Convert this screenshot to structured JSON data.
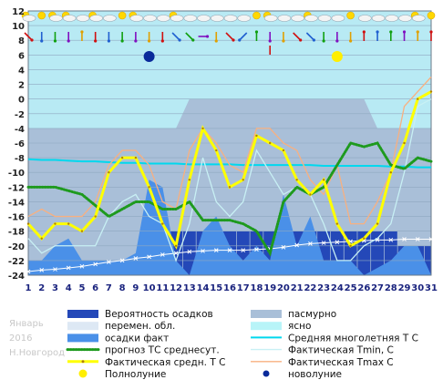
{
  "chart_data": {
    "type": "line",
    "x": [
      1,
      2,
      3,
      4,
      5,
      6,
      7,
      8,
      9,
      10,
      11,
      12,
      13,
      14,
      15,
      16,
      17,
      18,
      19,
      20,
      21,
      22,
      23,
      24,
      25,
      26,
      27,
      28,
      29,
      30,
      31
    ],
    "xlim": [
      1,
      31
    ],
    "ylim": [
      -24,
      12
    ],
    "y_ticks": [
      12,
      10,
      8,
      6,
      4,
      2,
      0,
      -2,
      -4,
      -6,
      -8,
      -10,
      -12,
      -14,
      -16,
      -18,
      -20,
      -22,
      -24
    ],
    "grid": true,
    "side_text": {
      "month": "Январь",
      "year": "2016",
      "city": "Н.Новгород"
    },
    "series": [
      {
        "name": "Вероятность осадков",
        "kind": "area",
        "color": "#2448b8",
        "values": [
          -22,
          -22,
          -22,
          -22,
          -22,
          -22,
          -22,
          -22,
          -22,
          -22,
          -22,
          -18,
          -18,
          -18,
          -18,
          -18,
          -18,
          -18,
          -18,
          -18,
          -18,
          -18,
          -18,
          -18,
          -18,
          -18,
          -18,
          -18,
          -20,
          -20,
          -20
        ]
      },
      {
        "name": "пасмурно",
        "kind": "band",
        "color": "#a9bfd8",
        "values": [
          -4,
          -4,
          -4,
          -4,
          -4,
          -4,
          -4,
          -4,
          -4,
          -4,
          -4,
          -4,
          -4,
          -4,
          -4,
          -4,
          -4,
          -4,
          -4,
          -4,
          -4,
          -4,
          -4,
          -4,
          -4,
          -4,
          -4,
          -4,
          -4,
          -4,
          -4
        ],
        "raised": {
          "from": 13,
          "to": 26,
          "value": 0
        }
      },
      {
        "name": "осадки факт",
        "kind": "area",
        "color": "#4a90e8",
        "values": [
          -22,
          -22,
          -20,
          -19,
          -22,
          -22,
          -22,
          -22,
          -21,
          -11,
          -12,
          -22,
          -24,
          -18,
          -16,
          -20,
          -22,
          -20,
          -22,
          -13,
          -20,
          -16,
          -22,
          -22,
          -22,
          -24,
          -23,
          -22,
          -20,
          -20,
          -24
        ]
      },
      {
        "name": "Средняя многолетняя Т С",
        "kind": "line",
        "color": "#00d8ee",
        "values": [
          -8.2,
          -8.3,
          -8.3,
          -8.4,
          -8.5,
          -8.5,
          -8.6,
          -8.7,
          -8.7,
          -8.8,
          -8.8,
          -8.8,
          -8.9,
          -8.9,
          -8.9,
          -8.9,
          -9.0,
          -9.0,
          -9.0,
          -9.0,
          -9.0,
          -9.0,
          -9.1,
          -9.1,
          -9.1,
          -9.1,
          -9.1,
          -9.2,
          -9.2,
          -9.3,
          -9.3
        ]
      },
      {
        "name": "Фактическая Tmin, C",
        "kind": "line",
        "color": "#c8f0f4",
        "values": [
          -19,
          -21,
          -20,
          -20,
          -20,
          -20,
          -16,
          -14,
          -13,
          -16,
          -17,
          -22,
          -17,
          -8,
          -14,
          -16,
          -14,
          -7,
          -10,
          -13,
          -12,
          -13,
          -17,
          -22,
          -22,
          -20,
          -19,
          -17,
          -10,
          -1,
          0
        ]
      },
      {
        "name": "Фактическая Tmax C",
        "kind": "line",
        "color": "#f8b080",
        "values": [
          -16,
          -15,
          -16,
          -16,
          -16,
          -14,
          -9,
          -7,
          -7,
          -9,
          -14,
          -15,
          -7,
          -4,
          -6,
          -9,
          -10,
          -4,
          -4,
          -6,
          -7,
          -11,
          -13,
          -9,
          -17,
          -17,
          -14,
          -10,
          -1,
          1,
          3
        ]
      },
      {
        "name": "прогноз ТС среднесут.",
        "kind": "line",
        "color": "#1e9a1e",
        "values": [
          -12,
          -12,
          -12,
          -12.5,
          -13,
          -14.5,
          -16,
          -15,
          -14,
          -14,
          -15,
          -15,
          -14,
          -16.5,
          -16.5,
          -16.5,
          -17,
          -18,
          -21,
          -14,
          -12,
          -13,
          -12,
          -9,
          -6,
          -6.5,
          -6,
          -9,
          -9.5,
          -8,
          -8.5
        ]
      },
      {
        "name": "Фактическая средн. Т С",
        "kind": "line",
        "color": "#ffff00",
        "values": [
          -17,
          -19,
          -17,
          -17,
          -18,
          -16,
          -10,
          -8,
          -8,
          -12,
          -17,
          -20,
          -11,
          -4,
          -7,
          -12,
          -11,
          -5,
          -6,
          -7,
          -11,
          -13,
          -11,
          -17,
          -20,
          -19,
          -17,
          -10,
          -6,
          0,
          1
        ]
      },
      {
        "name": "Светлая линия (снег)",
        "kind": "crossline",
        "color": "#ffffff",
        "values": [
          -23.5,
          -23.3,
          -23.2,
          -23.0,
          -22.8,
          -22.5,
          -22.2,
          -22.0,
          -21.7,
          -21.5,
          -21.2,
          -21.0,
          -20.8,
          -20.7,
          -20.6,
          -20.6,
          -20.6,
          -20.5,
          -20.4,
          -20.2,
          -19.9,
          -19.7,
          -19.6,
          -19.5,
          -19.4,
          -19.3,
          -19.2,
          -19.2,
          -19.1,
          -19.1,
          -19.1
        ]
      }
    ],
    "moon": {
      "full": 24,
      "new": 10
    },
    "weather_icons": [
      "partly-cloudy",
      "sun",
      "partly-cloudy",
      "partly-cloudy",
      "cloud",
      "partly-cloudy",
      "cloud",
      "sun",
      "partly-cloudy",
      "cloud",
      "cloud",
      "partly-cloudy",
      "cloud",
      "cloud",
      "cloud",
      "cloud",
      "cloud",
      "sun",
      "partly-cloudy",
      "cloud",
      "cloud",
      "partly-cloudy",
      "cloud",
      "cloud",
      "sun",
      "cloud",
      "cloud",
      "cloud",
      "cloud",
      "partly-cloudy",
      "sun"
    ],
    "wind_arrows_row1": [
      "rightdown",
      "down",
      "down",
      "down",
      "up",
      "down",
      "down",
      "down",
      "down",
      "down",
      "down",
      "downright",
      "downright",
      "right",
      "down",
      "downright",
      "downleft",
      "up",
      "down",
      "down",
      "downright",
      "downright",
      "down",
      "down",
      "down",
      "up",
      "up",
      "up",
      "up",
      "up",
      "up"
    ],
    "wind_arrows_row2": [
      "",
      "",
      "",
      "",
      "",
      "",
      "",
      "",
      "",
      "",
      "",
      "",
      "",
      "",
      "",
      "",
      "",
      "",
      "up",
      "",
      "",
      "",
      "",
      "",
      "",
      "",
      "",
      "",
      "",
      "",
      ""
    ],
    "wind_row2_color": [
      "",
      "",
      "",
      "",
      "",
      "",
      "",
      "",
      "",
      "",
      "",
      "",
      "",
      "",
      "",
      "",
      "",
      "",
      "red",
      "",
      "",
      "",
      "",
      "",
      "",
      "",
      "",
      "",
      "",
      "",
      ""
    ],
    "legend": [
      {
        "label": "Вероятность осадков",
        "kind": "box",
        "color": "#2448b8"
      },
      {
        "label": "пасмурно",
        "kind": "box",
        "color": "#a9bfd8"
      },
      {
        "label": "перемен. обл.",
        "kind": "box",
        "color": "#dde8f4"
      },
      {
        "label": "ясно",
        "kind": "box",
        "color": "#b8f4f8"
      },
      {
        "label": "осадки факт",
        "kind": "box",
        "color": "#4a90e8"
      },
      {
        "label": "Средняя многолетняя Т С",
        "kind": "line",
        "color": "#00d8ee"
      },
      {
        "label": "прогноз ТС среднесут.",
        "kind": "dots",
        "color": "#1e9a1e"
      },
      {
        "label": "Фактическая Tmin, C",
        "kind": "thinline",
        "color": "#c8f0f4"
      },
      {
        "label": "Фактическая средн. Т С",
        "kind": "thick",
        "color": "#ffff00"
      },
      {
        "label": "Фактическая Tmax C",
        "kind": "thinline",
        "color": "#f8b080"
      },
      {
        "label": "Полнолуние",
        "kind": "sun",
        "color": "#ffee00"
      },
      {
        "label": "новолуние",
        "kind": "moon",
        "color": "#0a2a9a"
      }
    ]
  }
}
